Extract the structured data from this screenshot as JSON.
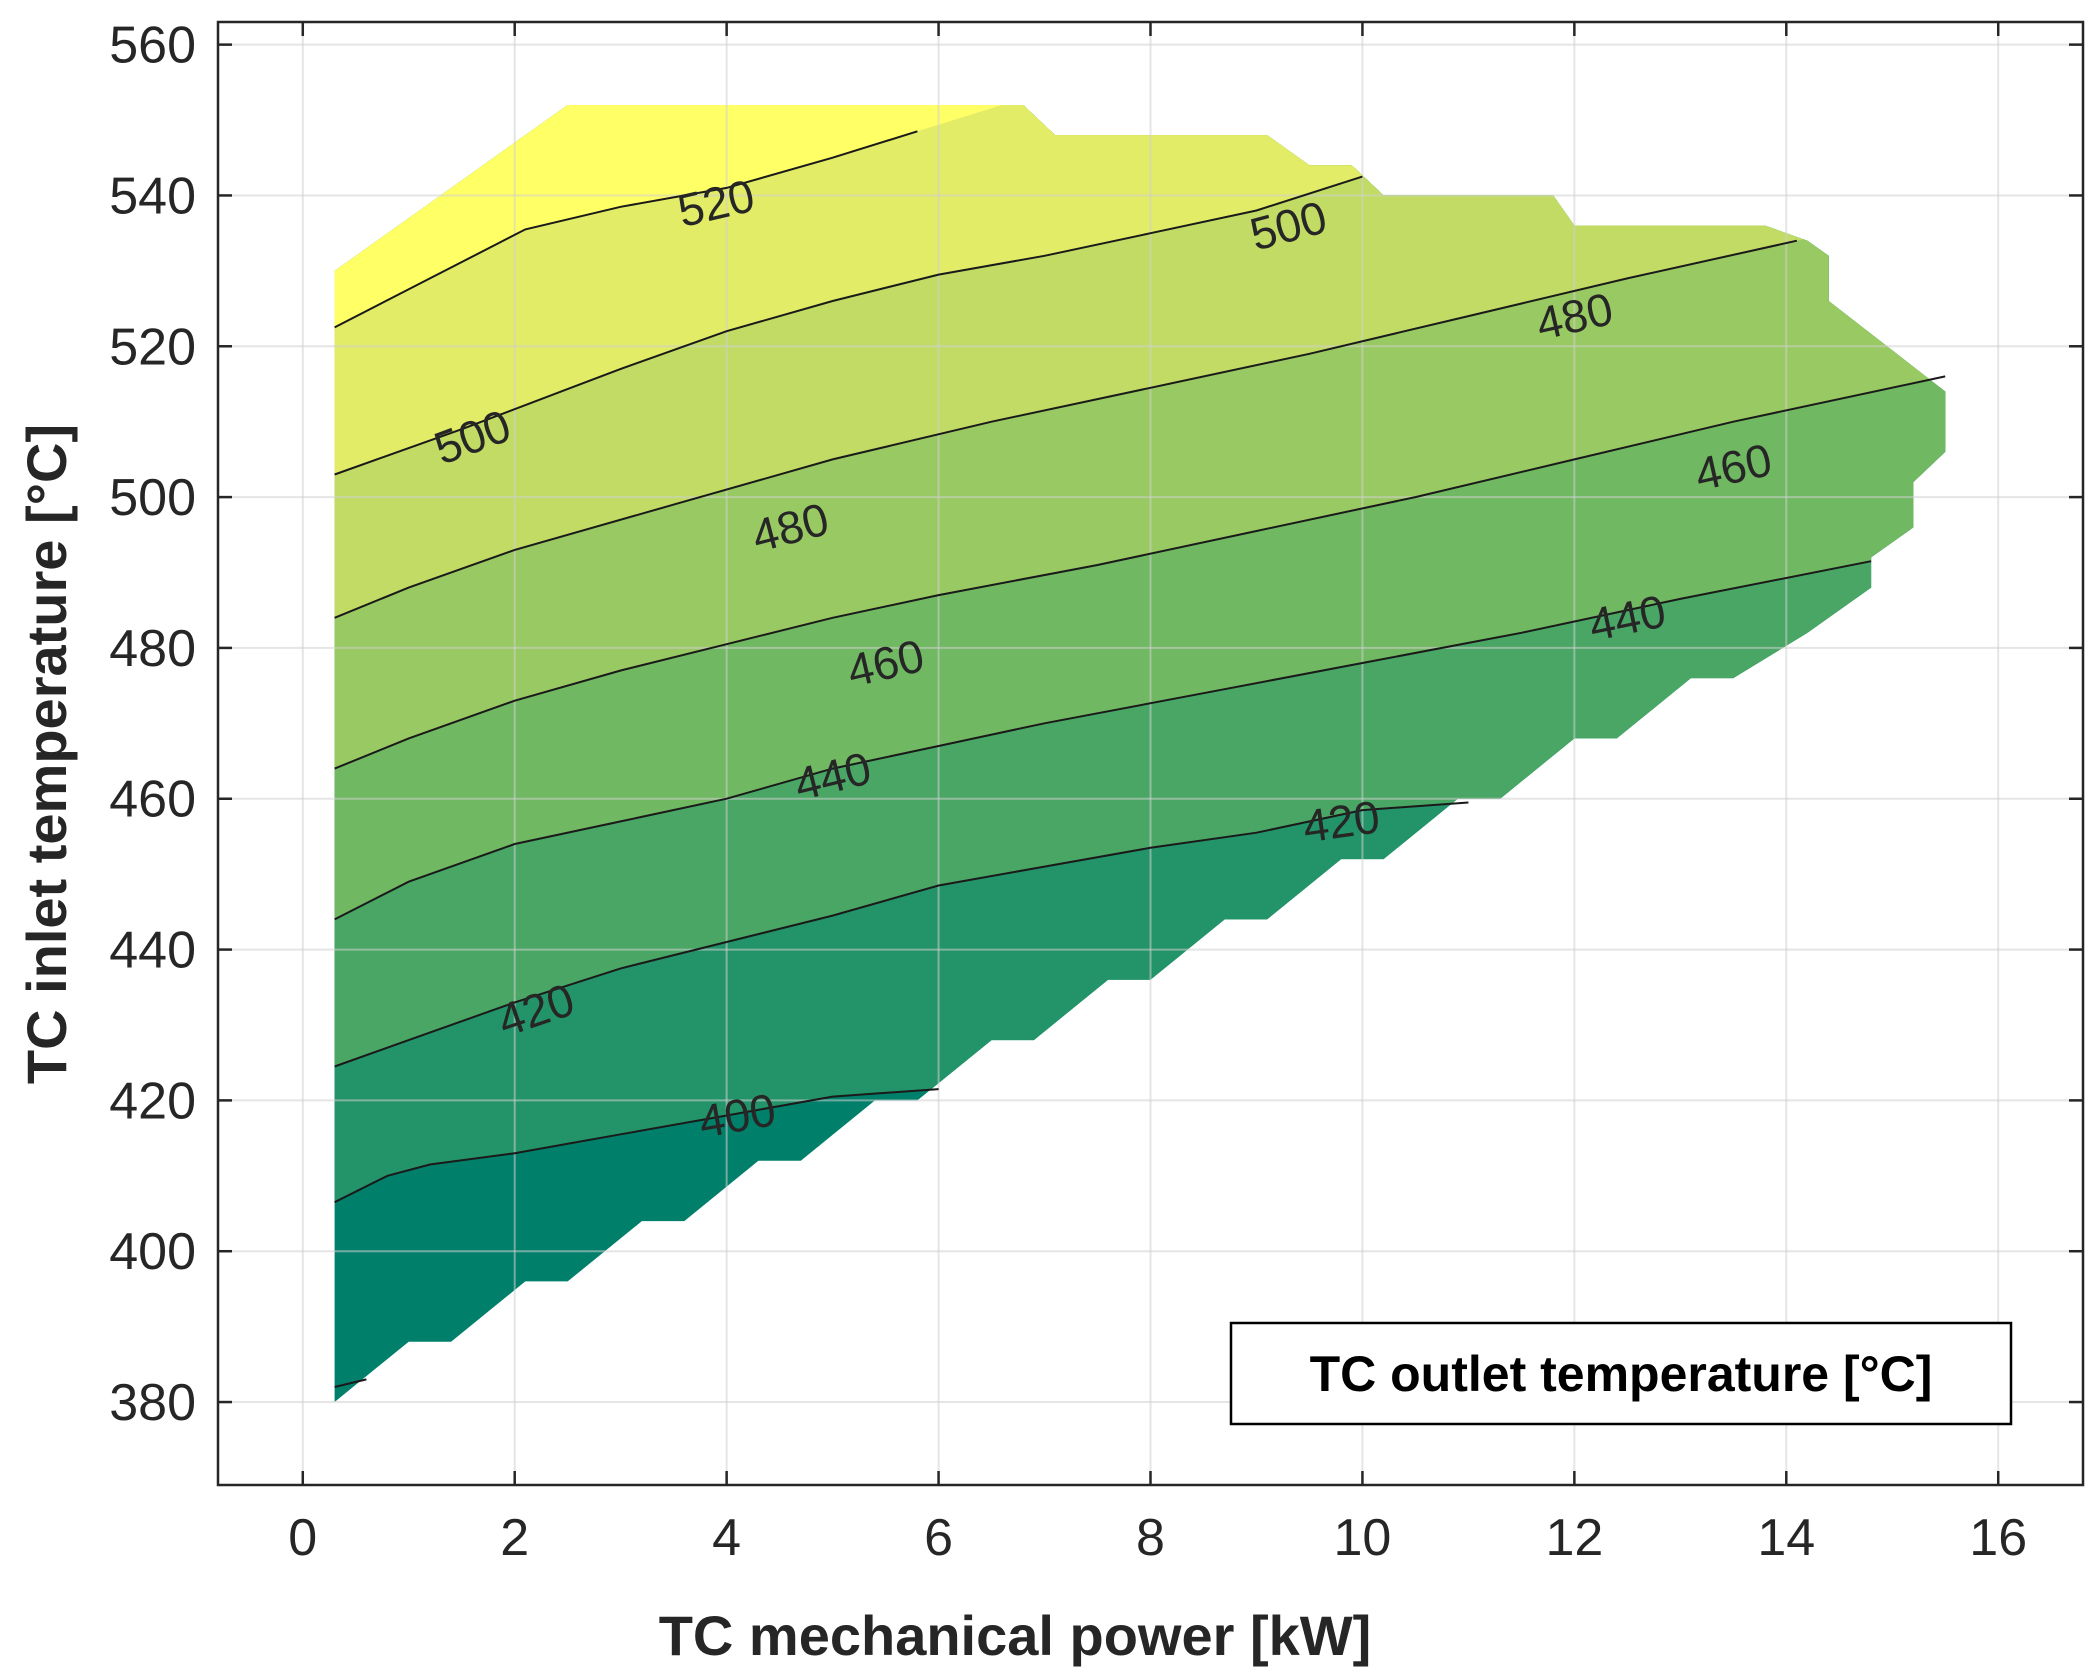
{
  "chart_data": {
    "type": "contour",
    "xlabel": "TC mechanical power [kW]",
    "ylabel": "TC inlet temperature [°C]",
    "annotation": "TC outlet temperature [°C]",
    "xlim": [
      -0.8,
      16.8
    ],
    "ylim": [
      369,
      563
    ],
    "xticks": [
      0,
      2,
      4,
      6,
      8,
      10,
      12,
      14,
      16
    ],
    "yticks": [
      380,
      400,
      420,
      440,
      460,
      480,
      500,
      520,
      540,
      560
    ],
    "grid": true,
    "legend": "bottom-right",
    "colormap": [
      "#00806A",
      "#23936A",
      "#4AA665",
      "#70B862",
      "#99C963",
      "#C2DB65",
      "#E3EC67",
      "#FFFF66"
    ],
    "levels": [
      380,
      400,
      420,
      440,
      460,
      480,
      500,
      520,
      540
    ],
    "domain_boundary": [
      [
        0.3,
        380
      ],
      [
        1.0,
        388
      ],
      [
        1.4,
        388
      ],
      [
        2.1,
        396
      ],
      [
        2.5,
        396
      ],
      [
        3.2,
        404
      ],
      [
        3.6,
        404
      ],
      [
        4.3,
        412
      ],
      [
        4.7,
        412
      ],
      [
        5.4,
        420
      ],
      [
        5.8,
        420
      ],
      [
        6.5,
        428
      ],
      [
        6.9,
        428
      ],
      [
        7.6,
        436
      ],
      [
        8.0,
        436
      ],
      [
        8.7,
        444
      ],
      [
        9.1,
        444
      ],
      [
        9.8,
        452
      ],
      [
        10.2,
        452
      ],
      [
        10.9,
        460
      ],
      [
        11.3,
        460
      ],
      [
        12.0,
        468
      ],
      [
        12.4,
        468
      ],
      [
        13.1,
        476
      ],
      [
        13.5,
        476
      ],
      [
        14.2,
        482
      ],
      [
        14.8,
        488
      ],
      [
        14.8,
        492
      ],
      [
        15.2,
        496
      ],
      [
        15.2,
        502
      ],
      [
        15.5,
        506
      ],
      [
        15.5,
        514
      ],
      [
        14.4,
        526
      ],
      [
        14.4,
        532
      ],
      [
        14.2,
        534
      ],
      [
        13.8,
        536
      ],
      [
        12.0,
        536
      ],
      [
        11.8,
        540
      ],
      [
        10.2,
        540
      ],
      [
        9.9,
        544
      ],
      [
        9.5,
        544
      ],
      [
        9.1,
        548
      ],
      [
        7.1,
        548
      ],
      [
        6.8,
        552
      ],
      [
        2.5,
        552
      ],
      [
        2.1,
        548
      ],
      [
        0.3,
        530
      ]
    ],
    "contours": [
      {
        "level": 520,
        "label": "520",
        "label_x": 3.9,
        "label_y": 539,
        "points": [
          [
            0.3,
            522.5
          ],
          [
            1.2,
            529
          ],
          [
            2.1,
            535.5
          ],
          [
            3.0,
            538.5
          ],
          [
            4.0,
            541
          ],
          [
            5.0,
            545
          ],
          [
            5.8,
            548.5
          ]
        ]
      },
      {
        "level": 500,
        "label": "500",
        "label_x": 1.6,
        "label_y": 508,
        "points": [
          [
            0.3,
            503
          ],
          [
            1.5,
            509
          ],
          [
            3.0,
            517
          ],
          [
            4.0,
            522
          ],
          [
            5.0,
            526
          ],
          [
            6.0,
            529.5
          ],
          [
            7.0,
            532
          ],
          [
            8.0,
            535
          ],
          [
            9.0,
            538
          ],
          [
            10.0,
            542.5
          ]
        ]
      },
      {
        "level": 500,
        "label": "500",
        "label_x": 9.3,
        "label_y": 536,
        "points": []
      },
      {
        "level": 480,
        "label": "480",
        "label_x": 4.6,
        "label_y": 496,
        "points": [
          [
            0.3,
            484
          ],
          [
            1.0,
            488
          ],
          [
            2.0,
            493
          ],
          [
            3.5,
            499
          ],
          [
            5.0,
            505
          ],
          [
            6.5,
            510
          ],
          [
            8.0,
            514.5
          ],
          [
            9.5,
            519
          ],
          [
            11.0,
            524
          ],
          [
            12.5,
            529
          ],
          [
            14.1,
            534
          ]
        ]
      },
      {
        "level": 480,
        "label": "480",
        "label_x": 12.0,
        "label_y": 524,
        "points": []
      },
      {
        "level": 460,
        "label": "460",
        "label_x": 5.5,
        "label_y": 478,
        "points": [
          [
            0.3,
            464
          ],
          [
            1.0,
            468
          ],
          [
            2.0,
            473
          ],
          [
            3.0,
            477
          ],
          [
            4.0,
            480.5
          ],
          [
            5.0,
            484
          ],
          [
            6.0,
            487
          ],
          [
            7.5,
            491
          ],
          [
            9.0,
            495.5
          ],
          [
            10.5,
            500
          ],
          [
            12.0,
            505
          ],
          [
            13.5,
            510
          ],
          [
            15.5,
            516
          ]
        ]
      },
      {
        "level": 460,
        "label": "460",
        "label_x": 13.5,
        "label_y": 504,
        "points": []
      },
      {
        "level": 440,
        "label": "440",
        "label_x": 5.0,
        "label_y": 463,
        "points": [
          [
            0.3,
            444
          ],
          [
            1.0,
            449
          ],
          [
            2.0,
            454
          ],
          [
            3.0,
            457
          ],
          [
            4.0,
            460
          ],
          [
            5.0,
            464
          ],
          [
            6.0,
            467
          ],
          [
            7.0,
            470
          ],
          [
            8.5,
            474
          ],
          [
            10.0,
            478
          ],
          [
            11.5,
            482
          ],
          [
            13.0,
            486.5
          ],
          [
            14.8,
            491.5
          ]
        ]
      },
      {
        "level": 440,
        "label": "440",
        "label_x": 12.5,
        "label_y": 484,
        "points": []
      },
      {
        "level": 420,
        "label": "420",
        "label_x": 2.2,
        "label_y": 432,
        "points": [
          [
            0.3,
            424.5
          ],
          [
            1.0,
            428
          ],
          [
            2.0,
            433
          ],
          [
            3.0,
            437.5
          ],
          [
            4.0,
            441
          ],
          [
            5.0,
            444.5
          ],
          [
            6.0,
            448.5
          ],
          [
            7.0,
            451
          ],
          [
            8.0,
            453.5
          ],
          [
            9.0,
            455.5
          ],
          [
            10.0,
            458.5
          ],
          [
            11.0,
            459.5
          ]
        ]
      },
      {
        "level": 420,
        "label": "420",
        "label_x": 9.8,
        "label_y": 457,
        "points": []
      },
      {
        "level": 400,
        "label": "400",
        "label_x": 4.1,
        "label_y": 418,
        "points": [
          [
            0.3,
            406.5
          ],
          [
            0.8,
            410
          ],
          [
            1.2,
            411.5
          ],
          [
            2.0,
            413
          ],
          [
            3.0,
            415.5
          ],
          [
            4.0,
            418
          ],
          [
            5.0,
            420.5
          ],
          [
            6.0,
            421.5
          ]
        ]
      },
      {
        "level": 380,
        "label": "",
        "label_x": 0,
        "label_y": 0,
        "points": [
          [
            0.3,
            382
          ],
          [
            0.6,
            383
          ]
        ]
      }
    ],
    "bands": [
      {
        "min": 380,
        "max": 400,
        "color": "#00806A"
      },
      {
        "min": 400,
        "max": 420,
        "color": "#23936A"
      },
      {
        "min": 420,
        "max": 440,
        "color": "#4AA665"
      },
      {
        "min": 440,
        "max": 460,
        "color": "#70B862"
      },
      {
        "min": 460,
        "max": 480,
        "color": "#99C963"
      },
      {
        "min": 480,
        "max": 500,
        "color": "#C2DB65"
      },
      {
        "min": 500,
        "max": 520,
        "color": "#E3EC67"
      },
      {
        "min": 520,
        "max": 560,
        "color": "#FFFF66"
      }
    ]
  }
}
